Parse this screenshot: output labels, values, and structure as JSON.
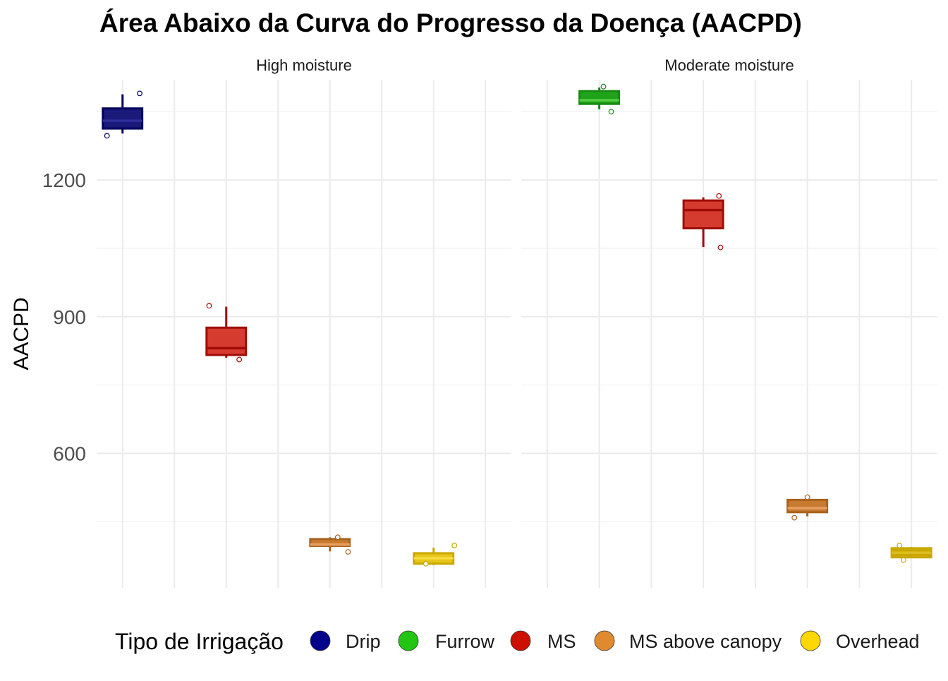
{
  "chart_data": {
    "type": "boxplot",
    "title": "Área Abaixo da Curva do Progresso da Doença (AACPD)",
    "xlabel": "",
    "ylabel": "AACPD",
    "ylim": [
      305,
      1420
    ],
    "yticks": [
      600,
      900,
      1200
    ],
    "grid": true,
    "legend": {
      "title": "Tipo de Irrigação",
      "position": "bottom",
      "entries": [
        {
          "label": "Drip",
          "color": "#00008B"
        },
        {
          "label": "Furrow",
          "color": "#22C511"
        },
        {
          "label": "MS",
          "color": "#CC1100"
        },
        {
          "label": "MS above canopy",
          "color": "#E08A30"
        },
        {
          "label": "Overhead",
          "color": "#FFD700"
        }
      ]
    },
    "panels": [
      {
        "name": "High moisture",
        "slots": 8,
        "boxes": [
          {
            "group": "Drip",
            "slot": 0,
            "fill": "#1A1A7A",
            "line": "#00005C",
            "median_line": "#2E2E99",
            "whisker_low": 1302,
            "q1": 1313,
            "median": 1330,
            "q3": 1357,
            "whisker_high": 1388,
            "points": [
              {
                "dx": -0.3,
                "y": 1297
              },
              {
                "dx": 0.33,
                "y": 1390
              }
            ]
          },
          {
            "group": "MS",
            "slot": 2,
            "fill": "#D63B30",
            "line": "#9E0D05",
            "median_line": "#9E0D05",
            "whisker_low": 810,
            "q1": 816,
            "median": 831,
            "q3": 876,
            "whisker_high": 922,
            "points": [
              {
                "dx": -0.33,
                "y": 924
              },
              {
                "dx": 0.25,
                "y": 806
              }
            ]
          },
          {
            "group": "MS above canopy",
            "slot": 4,
            "fill": "#C77A30",
            "line": "#A8621E",
            "median_line": "#E8A060",
            "whisker_low": 385,
            "q1": 397,
            "median": 400,
            "q3": 412,
            "whisker_high": 416,
            "points": [
              {
                "dx": 0.15,
                "y": 416
              },
              {
                "dx": 0.35,
                "y": 384
              }
            ]
          },
          {
            "group": "Overhead",
            "slot": 6,
            "fill": "#E8C51A",
            "line": "#C9A800",
            "median_line": "#F5DC40",
            "whisker_low": 355,
            "q1": 358,
            "median": 370,
            "q3": 381,
            "whisker_high": 393,
            "points": [
              {
                "dx": 0.4,
                "y": 398
              },
              {
                "dx": -0.15,
                "y": 358
              }
            ]
          }
        ]
      },
      {
        "name": "Moderate moisture",
        "slots": 8,
        "boxes": [
          {
            "group": "Furrow",
            "slot": 1,
            "fill": "#1FA31A",
            "line": "#178A12",
            "median_line": "#55CC44",
            "whisker_low": 1355,
            "q1": 1367,
            "median": 1375,
            "q3": 1395,
            "whisker_high": 1403,
            "points": [
              {
                "dx": 0.08,
                "y": 1405
              },
              {
                "dx": 0.23,
                "y": 1350
              }
            ]
          },
          {
            "group": "MS",
            "slot": 3,
            "fill": "#D63B30",
            "line": "#9E0D05",
            "median_line": "#9E0D05",
            "whisker_low": 1053,
            "q1": 1094,
            "median": 1134,
            "q3": 1155,
            "whisker_high": 1162,
            "points": [
              {
                "dx": 0.3,
                "y": 1165
              },
              {
                "dx": 0.33,
                "y": 1052
              }
            ]
          },
          {
            "group": "MS above canopy",
            "slot": 5,
            "fill": "#C77A30",
            "line": "#A8621E",
            "median_line": "#E8A060",
            "whisker_low": 462,
            "q1": 471,
            "median": 480,
            "q3": 498,
            "whisker_high": 502,
            "points": [
              {
                "dx": 0.0,
                "y": 504
              },
              {
                "dx": -0.25,
                "y": 459
              }
            ]
          },
          {
            "group": "Overhead",
            "slot": 7,
            "fill": "#C9A800",
            "line": "#C9A800",
            "median_line": "#DDBB22",
            "whisker_low": 370,
            "q1": 372,
            "median": 382,
            "q3": 392,
            "whisker_high": 395,
            "points": [
              {
                "dx": -0.23,
                "y": 398
              },
              {
                "dx": -0.15,
                "y": 366
              }
            ]
          }
        ]
      }
    ]
  }
}
